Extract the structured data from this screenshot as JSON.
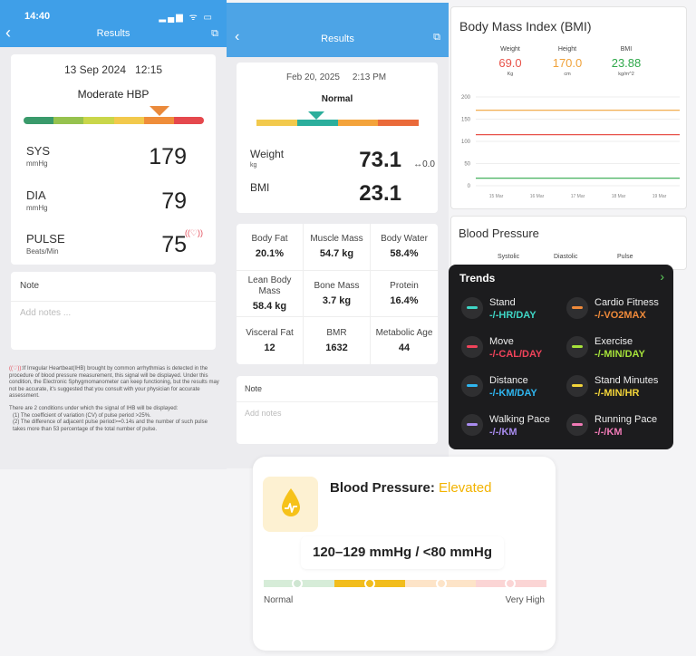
{
  "bp_screen": {
    "status_time": "14:40",
    "status_icons": "▂▄▆ ᯤ ▭",
    "header_title": "Results",
    "date": "13 Sep 2024",
    "time": "12:15",
    "level": "Moderate HBP",
    "scale_colors": [
      "#3a9a6b",
      "#96c24e",
      "#c9d64a",
      "#f2c94c",
      "#ef8d3a",
      "#e5484d"
    ],
    "sys": {
      "label": "SYS",
      "unit": "mmHg",
      "value": "179"
    },
    "dia": {
      "label": "DIA",
      "unit": "mmHg",
      "value": "79"
    },
    "pulse": {
      "label": "PULSE",
      "unit": "Beats/Min",
      "value": "75"
    },
    "note_label": "Note",
    "note_placeholder": "Add notes ...",
    "ihb_symbol": "((♡))",
    "fine_print_1": ":If Irregular Heartbeat(IHB) brought by common arrhythmias is detected in the procedure of blood pressure measurement, this signal will be displayed. Under this condition, the Electronic Sphygmomanometer can keep functioning, but the results may not be accurate, it's suggested that you consult with your physician for accurate assessment.",
    "fine_print_2": "There are 2 conditions under which the signal of IHB will be displayed:",
    "fine_print_3": "(1)  The coefficient of variation (CV) of pulse period >25%.",
    "fine_print_4": "(2)  The difference of adjacent pulse period>=0.14s and the number of such pulse takes more than 53 percentage of the total number of pulse."
  },
  "weight_screen": {
    "header_title": "Results",
    "date": "Feb 20, 2025",
    "time": "2:13 PM",
    "level": "Normal",
    "scale_colors": [
      "#f2c94c",
      "#2bae9c",
      "#f3a33b",
      "#ea6a3a"
    ],
    "weight": {
      "label": "Weight",
      "unit": "kg",
      "value": "73.1",
      "delta": "↔0.0"
    },
    "bmi": {
      "label": "BMI",
      "value": "23.1"
    },
    "metrics": [
      {
        "label": "Body Fat",
        "value": "20.1%"
      },
      {
        "label": "Muscle Mass",
        "value": "54.7 kg"
      },
      {
        "label": "Body Water",
        "value": "58.4%"
      },
      {
        "label": "Lean Body Mass",
        "value": "58.4 kg"
      },
      {
        "label": "Bone Mass",
        "value": "3.7 kg"
      },
      {
        "label": "Protein",
        "value": "16.4%"
      },
      {
        "label": "Visceral Fat",
        "value": "12"
      },
      {
        "label": "BMR",
        "value": "1632"
      },
      {
        "label": "Metabolic Age",
        "value": "44"
      }
    ],
    "note_label": "Note",
    "note_placeholder": "Add notes"
  },
  "bmi_panel": {
    "title": "Body Mass Index (BMI)",
    "weight": {
      "label": "Weight",
      "value": "69.0",
      "unit": "Kg",
      "color": "#e8534a"
    },
    "height": {
      "label": "Height",
      "value": "170.0",
      "unit": "cm",
      "color": "#f0a23a"
    },
    "bmi": {
      "label": "BMI",
      "value": "23.88",
      "unit": "kg/m^2",
      "color": "#2fa84a"
    }
  },
  "chart_data": {
    "type": "line",
    "title": "",
    "categories": [
      "15 Mar",
      "16 Mar",
      "17 Mar",
      "18 Mar",
      "19 Mar"
    ],
    "y_ticks": [
      "0",
      "50",
      "100",
      "150",
      "200"
    ],
    "ylim": [
      0,
      200
    ],
    "grid": true,
    "series": [
      {
        "values": [
          170,
          170,
          170,
          170,
          170
        ],
        "color": "#f0a23a"
      },
      {
        "values": [
          115,
          115,
          115,
          115,
          115
        ],
        "color": "#e8534a"
      },
      {
        "values": [
          17,
          17,
          17,
          17,
          17
        ],
        "color": "#2fa84a"
      }
    ]
  },
  "bp_panel": {
    "title": "Blood Pressure",
    "columns": [
      "Systolic",
      "Diastolic",
      "Pulse"
    ]
  },
  "trends": {
    "title": "Trends",
    "chevron": "›",
    "items": [
      {
        "label": "Stand",
        "value": "-/-HR/DAY",
        "color": "#3fd6c6",
        "icon": "stand-icon"
      },
      {
        "label": "Cardio Fitness",
        "value": "-/-VO2MAX",
        "color": "#f08a3a",
        "icon": "cardio-fitness-icon"
      },
      {
        "label": "Move",
        "value": "-/-CAL/DAY",
        "color": "#f0435a",
        "icon": "move-icon"
      },
      {
        "label": "Exercise",
        "value": "-/-MIN/DAY",
        "color": "#a6e23a",
        "icon": "exercise-icon"
      },
      {
        "label": "Distance",
        "value": "-/-KM/DAY",
        "color": "#2fb6f0",
        "icon": "distance-icon"
      },
      {
        "label": "Stand Minutes",
        "value": "-/-MIN/HR",
        "color": "#f2d43a",
        "icon": "stand-minutes-icon"
      },
      {
        "label": "Walking Pace",
        "value": "-/-/KM",
        "color": "#a98cf0",
        "icon": "walking-pace-icon"
      },
      {
        "label": "Running Pace",
        "value": "-/-/KM",
        "color": "#f07ab6",
        "icon": "running-pace-icon"
      }
    ]
  },
  "elevated_card": {
    "heading": "Blood Pressure:",
    "status": "Elevated",
    "range": "120–129 mmHg / <80 mmHg",
    "low_label": "Normal",
    "high_label": "Very High",
    "segments": [
      "#d6ecd8",
      "#d6ecd8",
      "#f2bd1d",
      "#f2bd1d",
      "#fde4c8",
      "#fde4c8",
      "#fbd5d5",
      "#fbd5d5"
    ],
    "current_level": 0.375
  }
}
